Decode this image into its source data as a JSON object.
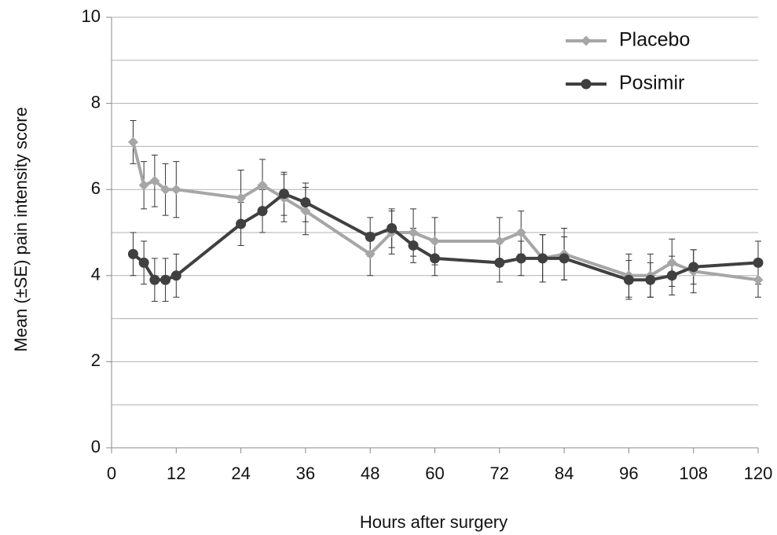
{
  "chart_data": {
    "type": "line",
    "x_label": "Hours after surgery",
    "y_label": "Mean (±SE) pain intensity score",
    "x": [
      4,
      6,
      8,
      10,
      12,
      24,
      28,
      32,
      36,
      48,
      52,
      56,
      60,
      72,
      76,
      80,
      84,
      96,
      100,
      104,
      108,
      120
    ],
    "series": [
      {
        "name": "Placebo",
        "color": "#a6a6a6",
        "marker": "diamond",
        "values": [
          7.1,
          6.1,
          6.2,
          6.0,
          6.0,
          5.8,
          6.1,
          5.8,
          5.5,
          4.5,
          5.0,
          5.0,
          4.8,
          4.8,
          5.0,
          4.4,
          4.5,
          4.0,
          4.0,
          4.3,
          4.1,
          3.9
        ],
        "errors": [
          0.5,
          0.55,
          0.6,
          0.6,
          0.65,
          0.65,
          0.6,
          0.55,
          0.55,
          0.5,
          0.5,
          0.55,
          0.55,
          0.55,
          0.5,
          0.55,
          0.6,
          0.5,
          0.5,
          0.55,
          0.5,
          0.4
        ]
      },
      {
        "name": "Posimir",
        "color": "#404040",
        "marker": "circle",
        "values": [
          4.5,
          4.3,
          3.9,
          3.9,
          4.0,
          5.2,
          5.5,
          5.9,
          5.7,
          4.9,
          5.1,
          4.7,
          4.4,
          4.3,
          4.4,
          4.4,
          4.4,
          3.9,
          3.9,
          4.0,
          4.2,
          4.3
        ],
        "errors": [
          0.5,
          0.5,
          0.5,
          0.5,
          0.5,
          0.5,
          0.5,
          0.5,
          0.45,
          0.45,
          0.45,
          0.4,
          0.4,
          0.45,
          0.4,
          0.55,
          0.5,
          0.45,
          0.4,
          0.45,
          0.4,
          0.5
        ]
      }
    ],
    "xlim": [
      0,
      120
    ],
    "xticks": [
      0,
      12,
      24,
      36,
      48,
      60,
      72,
      84,
      96,
      108,
      120
    ],
    "ylim": [
      0,
      10
    ],
    "yticks": [
      0,
      2,
      4,
      6,
      8,
      10
    ],
    "minor_yticks": [
      1,
      3,
      5,
      7,
      9
    ],
    "grid": true,
    "legend": "upper right"
  }
}
